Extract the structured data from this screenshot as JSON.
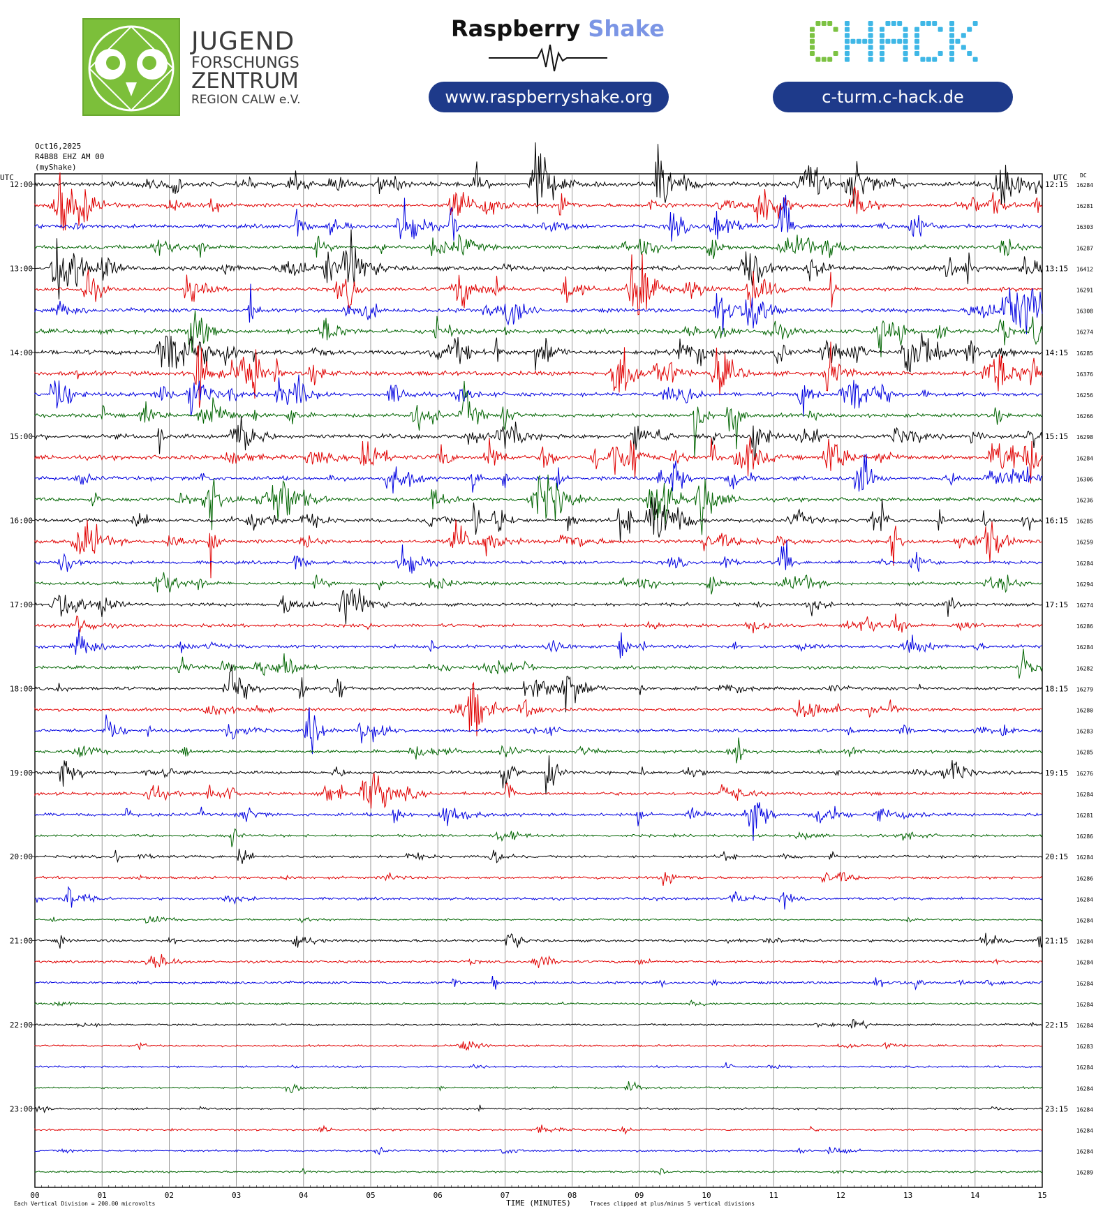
{
  "logos": {
    "jfz": {
      "line1": "JUGEND",
      "line2": "FORSCHUNGS",
      "line3": "ZENTRUM",
      "line4": "REGION CALW e.V."
    },
    "rs": {
      "brand_dark": "Raspberry",
      "brand_accent": "Shake",
      "url": "www.raspberryshake.org"
    },
    "chack": {
      "text": "CHACK",
      "url": "c-turm.c-hack.de"
    }
  },
  "header": {
    "date": "Oct16,2025",
    "station": "R4B88 EHZ AM 00",
    "source": "(myShake)"
  },
  "chart_data": {
    "type": "line",
    "title": "",
    "xlabel": "TIME (MINUTES)",
    "x_ticks": [
      "00",
      "01",
      "02",
      "03",
      "04",
      "05",
      "06",
      "07",
      "08",
      "09",
      "10",
      "11",
      "12",
      "13",
      "14",
      "15"
    ],
    "xlim": [
      0,
      15
    ],
    "left_axis_label": "UTC",
    "right_axis_label": "UTC",
    "dc_label": "DC",
    "left_hour_labels": [
      "12:00",
      "13:00",
      "14:00",
      "15:00",
      "16:00",
      "17:00",
      "18:00",
      "19:00",
      "20:00",
      "21:00",
      "22:00",
      "23:00"
    ],
    "right_hour_labels": [
      "12:15",
      "13:15",
      "14:15",
      "15:15",
      "16:15",
      "17:15",
      "18:15",
      "19:15",
      "20:15",
      "21:15",
      "22:15",
      "23:15"
    ],
    "dc_offsets": [
      16284,
      16281,
      16303,
      16287,
      16412,
      16291,
      16308,
      16274,
      16285,
      16376,
      16256,
      16266,
      16298,
      16284,
      16306,
      16236,
      16285,
      16259,
      16284,
      16294,
      16274,
      16286,
      16284,
      16282,
      16279,
      16280,
      16283,
      16285,
      16276,
      16284,
      16281,
      16286,
      16284,
      16286,
      16284,
      16284,
      16284,
      16284,
      16284,
      16284,
      16284,
      16283,
      16284,
      16284,
      16284,
      16284,
      16284,
      16289
    ],
    "trace_colors": [
      "#000000",
      "#e00000",
      "#0000e0",
      "#006400"
    ],
    "traces_per_hour": 4,
    "minutes_per_trace": 15,
    "activity_level": [
      5,
      4,
      4,
      4,
      5,
      4,
      4,
      5,
      5,
      5,
      4,
      4,
      5,
      5,
      4,
      4,
      4,
      4,
      3,
      3,
      3,
      3,
      3,
      3,
      3,
      3,
      3,
      3,
      3,
      3,
      3,
      2,
      2,
      2,
      2,
      1,
      2,
      2,
      2,
      1,
      1,
      1,
      1,
      1,
      1,
      1,
      1,
      1
    ],
    "footer_left": "Each Vertical Division =  200.00 microvolts",
    "footer_right": "Traces clipped at plus/minus 5 vertical divisions"
  }
}
